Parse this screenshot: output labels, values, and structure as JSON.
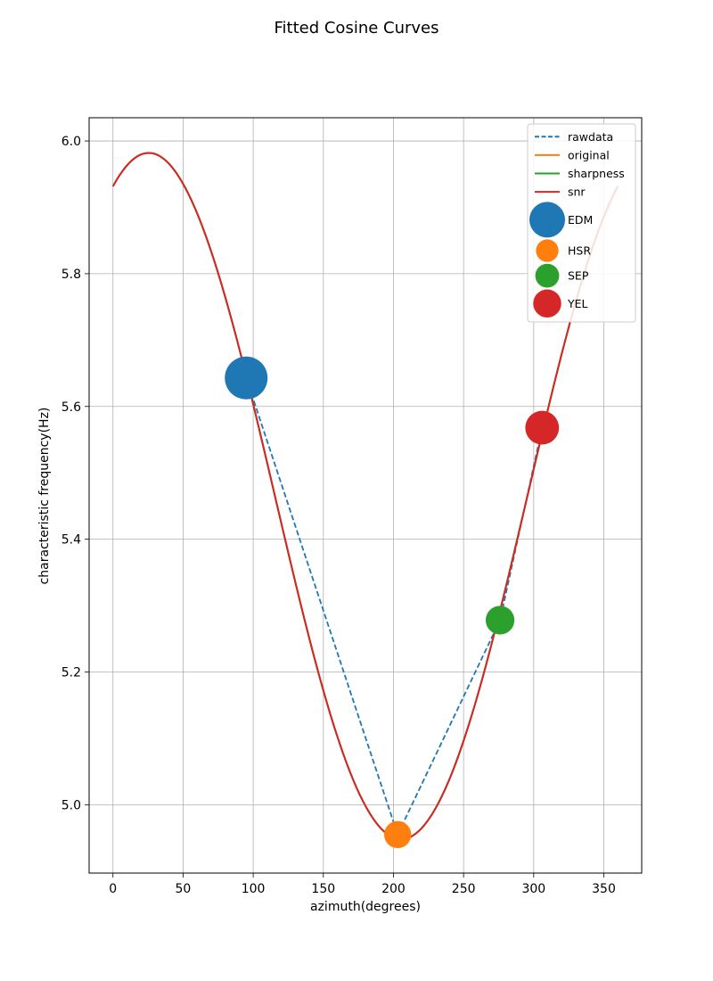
{
  "chart_data": {
    "type": "line",
    "title": "Fitted Cosine Curves",
    "xlabel": "azimuth(degrees)",
    "ylabel": "characteristic frequency(Hz)",
    "xlim": [
      -17,
      377
    ],
    "ylim": [
      4.897,
      6.035
    ],
    "xticks": [
      0,
      50,
      100,
      150,
      200,
      250,
      300,
      350
    ],
    "yticks": [
      5.0,
      5.2,
      5.4,
      5.6,
      5.8,
      6.0
    ],
    "xtick_labels": [
      "0",
      "50",
      "100",
      "150",
      "200",
      "250",
      "300",
      "350"
    ],
    "ytick_labels": [
      "5.0",
      "5.2",
      "5.4",
      "5.6",
      "5.8",
      "6.0"
    ],
    "grid": true,
    "legend_position": "upper right",
    "colors": {
      "rawdata": "#1f77b4",
      "original": "#ff7f0e",
      "sharpness": "#2ca02c",
      "snr": "#d62728"
    },
    "cosine_model": {
      "formula": "y = offset + amplitude * cos(x - phase)",
      "offset": 5.465,
      "amplitude": 0.517,
      "phase": 25.5,
      "x_range": [
        0,
        360
      ]
    },
    "series": [
      {
        "name": "rawdata",
        "style": "dashed",
        "color": "#1f77b4",
        "x": [
          95,
          203,
          276,
          306
        ],
        "y": [
          5.643,
          4.955,
          5.278,
          5.568
        ]
      },
      {
        "name": "original",
        "style": "solid",
        "color": "#ff7f0e",
        "model": "cosine"
      },
      {
        "name": "sharpness",
        "style": "solid",
        "color": "#2ca02c",
        "model": "cosine"
      },
      {
        "name": "snr",
        "style": "solid",
        "color": "#d62728",
        "model": "cosine"
      }
    ],
    "stations": [
      {
        "name": "EDM",
        "x": 95,
        "y": 5.643,
        "color": "#1f77b4",
        "size": 1.0
      },
      {
        "name": "HSR",
        "x": 203,
        "y": 4.955,
        "color": "#ff7f0e",
        "size": 0.4
      },
      {
        "name": "SEP",
        "x": 276,
        "y": 5.278,
        "color": "#2ca02c",
        "size": 0.45
      },
      {
        "name": "YEL",
        "x": 306,
        "y": 5.568,
        "color": "#d62728",
        "size": 0.62
      }
    ],
    "legend": [
      "rawdata",
      "original",
      "sharpness",
      "snr",
      "EDM",
      "HSR",
      "SEP",
      "YEL"
    ]
  }
}
